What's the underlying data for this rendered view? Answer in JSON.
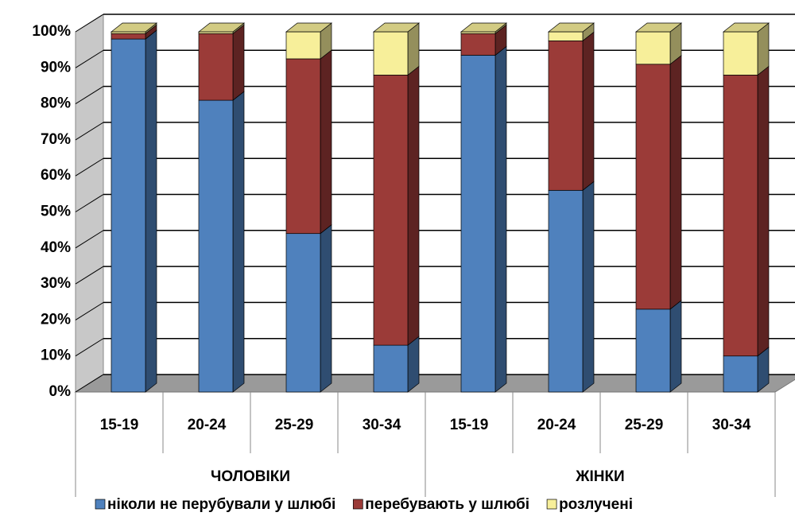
{
  "chart_data": {
    "type": "stacked-bar-3d",
    "categories": [
      "15-19",
      "20-24",
      "25-29",
      "30-34",
      "15-19",
      "20-24",
      "25-29",
      "30-34"
    ],
    "groups": [
      "ЧОЛОВІКИ",
      "ЖІНКИ"
    ],
    "series": [
      {
        "name": "ніколи не перубували у шлюбі",
        "color": "#4f81bd",
        "values": [
          98,
          81,
          44,
          13,
          93.5,
          56,
          23,
          10
        ]
      },
      {
        "name": "перебувають у шлюбі",
        "color": "#9b3b38",
        "values": [
          1.5,
          18.5,
          48.5,
          75,
          6,
          41.5,
          68,
          78
        ]
      },
      {
        "name": "розлучені",
        "color": "#f7ef9a",
        "values": [
          0.5,
          0.5,
          7.5,
          12,
          0.5,
          2.5,
          9,
          12
        ]
      }
    ],
    "ylim": [
      0,
      100
    ],
    "yticks": [
      {
        "value": 0,
        "label": "0%"
      },
      {
        "value": 10,
        "label": "10%"
      },
      {
        "value": 20,
        "label": "20%"
      },
      {
        "value": 30,
        "label": "30%"
      },
      {
        "value": 40,
        "label": "40%"
      },
      {
        "value": 50,
        "label": "50%"
      },
      {
        "value": 60,
        "label": "60%"
      },
      {
        "value": 70,
        "label": "70%"
      },
      {
        "value": 80,
        "label": "80%"
      },
      {
        "value": 90,
        "label": "90%"
      },
      {
        "value": 100,
        "label": "100%"
      }
    ],
    "grid": true
  }
}
